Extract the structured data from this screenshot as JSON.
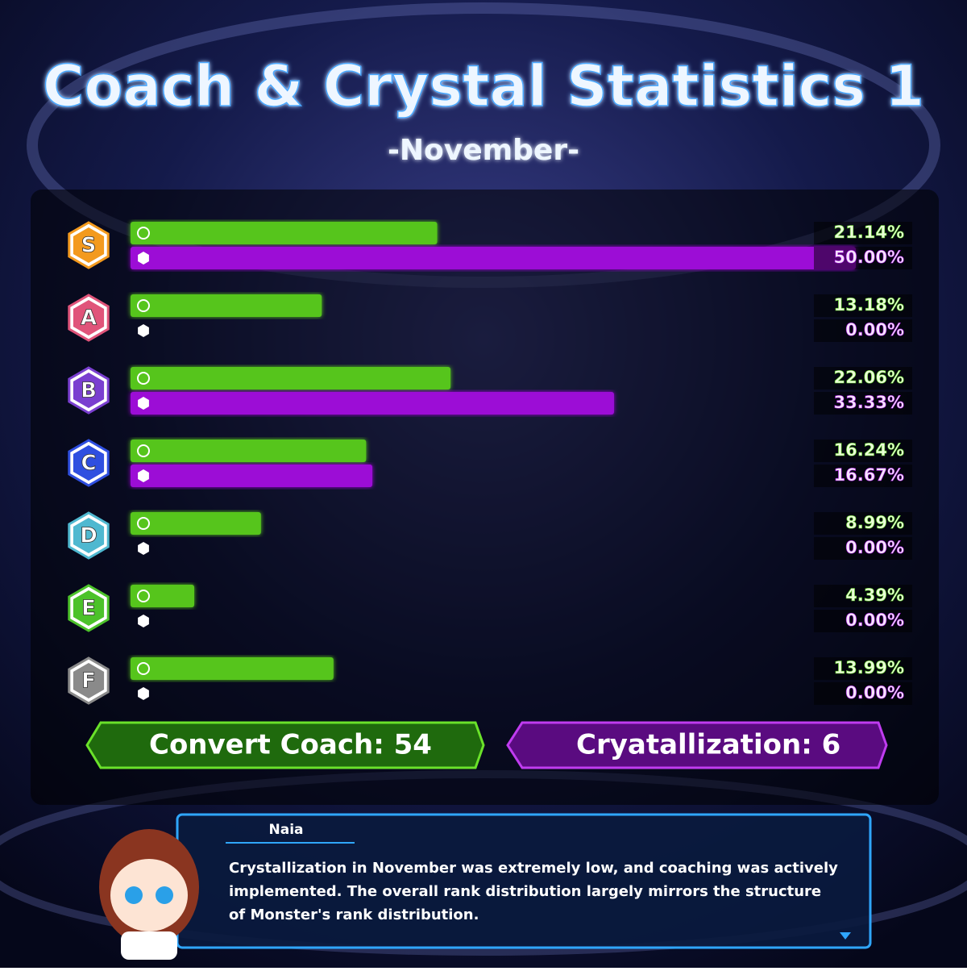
{
  "chart_data": {
    "type": "bar",
    "title": "Coach & Crystal Statistics 1",
    "subtitle": "-November-",
    "categories": [
      "S",
      "A",
      "B",
      "C",
      "D",
      "E",
      "F"
    ],
    "badge_colors": [
      "#f39a1e",
      "#e0547a",
      "#7a3fd0",
      "#2f4fe0",
      "#4fb8d0",
      "#4cc22a",
      "#8a8a8a"
    ],
    "series": [
      {
        "color": "#56c51d",
        "values": [
          21.14,
          13.18,
          22.06,
          16.24,
          8.99,
          4.39,
          13.99
        ],
        "value_labels": [
          "21.14%",
          "13.18%",
          "22.06%",
          "16.24%",
          "8.99%",
          "4.39%",
          "13.99%"
        ]
      },
      {
        "color": "#9c0fd6",
        "values": [
          50.0,
          0.0,
          33.33,
          16.67,
          0.0,
          0.0,
          0.0
        ],
        "value_labels": [
          "50.00%",
          "0.00%",
          "33.33%",
          "16.67%",
          "0.00%",
          "0.00%",
          "0.00%"
        ]
      }
    ],
    "totals": [
      "Convert Coach: 54",
      "Cryatallization: 6"
    ]
  },
  "dialog": {
    "speaker": "Naia",
    "text": "Crystallization in November was extremely low, and  coaching was actively implemented. The overall rank distribution largely mirrors the structure of Monster's rank distribution."
  }
}
